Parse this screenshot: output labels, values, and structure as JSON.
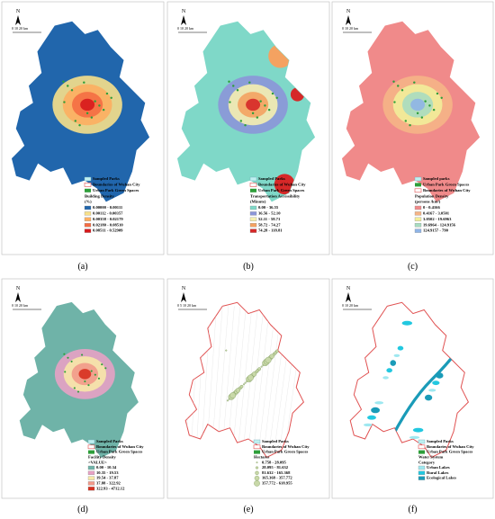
{
  "panels": [
    {
      "label": "(a)",
      "north": "N",
      "scale": "0   10   20 km",
      "legend": {
        "items": [
          "Sampled Parks",
          "Boundaries of Wuhan City",
          "Urban Park Green Spaces"
        ],
        "title": "Building Density",
        "unit": "(%)",
        "classes": [
          {
            "name": "0.00000 - 0.00111",
            "color": "#2166ac"
          },
          {
            "name": "0.00112 - 0.00357",
            "color": "#f7e08a"
          },
          {
            "name": "0.00358 - 0.02179",
            "color": "#fdae61"
          },
          {
            "name": "0.02180 - 0.08510",
            "color": "#f46d43"
          },
          {
            "name": "0.08511 - 0.52909",
            "color": "#d7191c"
          }
        ]
      }
    },
    {
      "label": "(b)",
      "north": "N",
      "scale": "0   10   20 km",
      "legend": {
        "items": [
          "Sampled Parks",
          "Boundaries of Wuhan City",
          "Urban Park Green Spaces"
        ],
        "title": "Transportation Accessibility",
        "unit": "(Minute)",
        "classes": [
          {
            "name": "0.00 - 36.55",
            "color": "#7fd8c8"
          },
          {
            "name": "36.56 - 52.10",
            "color": "#8c96d8"
          },
          {
            "name": "52.11 - 58.71",
            "color": "#f5f0b0"
          },
          {
            "name": "58.72 - 74.27",
            "color": "#f4a261"
          },
          {
            "name": "74.28 - 118.81",
            "color": "#d62828"
          }
        ]
      }
    },
    {
      "label": "(c)",
      "north": "N",
      "scale": "0   10   20 km",
      "legend": {
        "items": [
          "Sampled parks",
          "Urban Park Green Spaces",
          "Boundaries of Wuhan City"
        ],
        "title": "Population Density",
        "unit": "(persons /km²)",
        "classes": [
          {
            "name": "0 - 0.4166",
            "color": "#f08a8a"
          },
          {
            "name": "0.4167 - 3.0501",
            "color": "#f5b486"
          },
          {
            "name": "3.0502 - 19.6963",
            "color": "#f2ee9a"
          },
          {
            "name": "19.6964 - 124.9156",
            "color": "#a8dcc0"
          },
          {
            "name": "124.9157 - 790",
            "color": "#8fb4e6"
          }
        ]
      }
    },
    {
      "label": "(d)",
      "north": "N",
      "scale": "0   10   20 km",
      "legend": {
        "items": [
          "Sampled Parks",
          "Boundaries of Wuhan City",
          "Urban Park Green Spaces"
        ],
        "title": "Facility Density",
        "unit": "<VALUE>",
        "classes": [
          {
            "name": "0.00 - 10.34",
            "color": "#6fb3a8"
          },
          {
            "name": "10.35 - 19.53",
            "color": "#e7a1c4"
          },
          {
            "name": "19.54 - 37.87",
            "color": "#f7e7a8"
          },
          {
            "name": "37.88 - 322.92",
            "color": "#f29a8a"
          },
          {
            "name": "322.93 - 4712.12",
            "color": "#d7301f"
          }
        ]
      }
    },
    {
      "label": "(e)",
      "north": "N",
      "scale": "0  5  10   20 km",
      "legend": {
        "items": [
          "Sampled Parks",
          "Boundaries of Wuhan City",
          "Urban Park Green Spaces"
        ],
        "title": "Hectares",
        "unit": null,
        "classes": [
          {
            "name": "0.758 - 28.095",
            "color": "#c8d8a8"
          },
          {
            "name": "28.095 - 81.632",
            "color": "#c8d8a8"
          },
          {
            "name": "81.632 - 165.368",
            "color": "#c8d8a8"
          },
          {
            "name": "165.368 - 357.772",
            "color": "#c8d8a8"
          },
          {
            "name": "357.772 - 618.955",
            "color": "#c8d8a8"
          }
        ]
      }
    },
    {
      "label": "(f)",
      "north": "N",
      "scale": "0   10   20 km",
      "legend": {
        "items": [
          "Sampled Parks",
          "Boundaries of Wuhan City",
          "Urban Park Green Spaces"
        ],
        "title": "Water System",
        "unit": "Category",
        "classes": [
          {
            "name": "Urban Lakes",
            "color": "#9ee8f0"
          },
          {
            "name": "Rural Lakes",
            "color": "#22c8e0"
          },
          {
            "name": "Ecological Lakes",
            "color": "#1a9bb8"
          }
        ]
      }
    }
  ]
}
